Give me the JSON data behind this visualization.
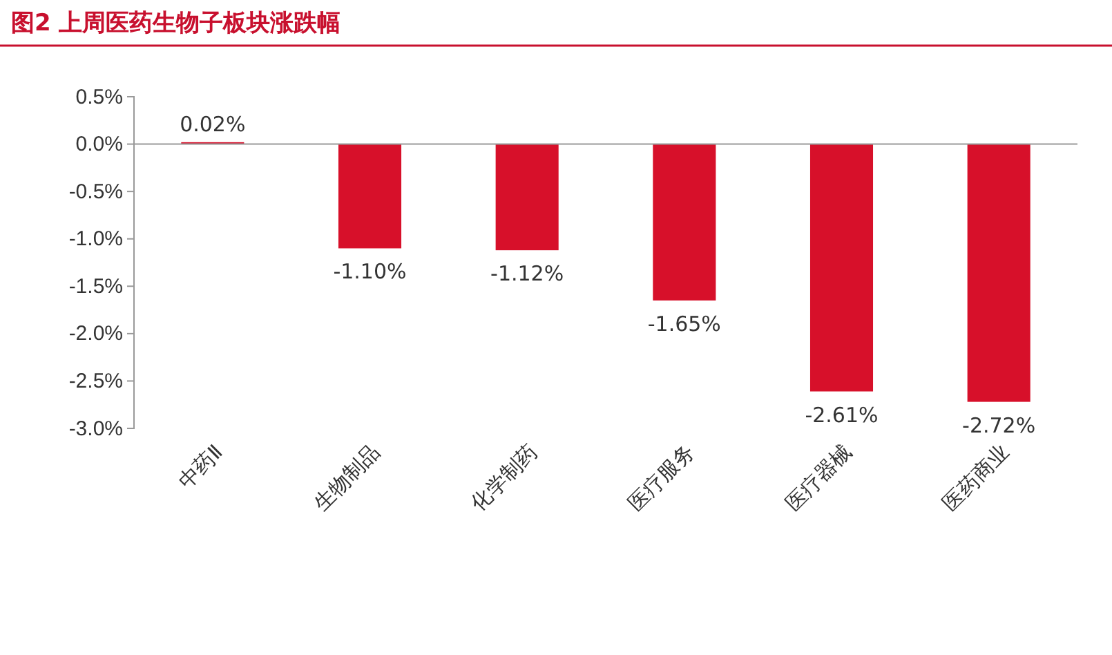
{
  "chart_data": {
    "type": "bar",
    "title": "图2  上周医药生物子板块涨跌幅",
    "categories": [
      "中药Ⅱ",
      "生物制品",
      "化学制药",
      "医疗服务",
      "医疗器械",
      "医药商业"
    ],
    "values": [
      0.02,
      -1.1,
      -1.12,
      -1.65,
      -2.61,
      -2.72
    ],
    "color": "#d7102a",
    "value_labels": [
      "0.02%",
      "-1.10%",
      "-1.12%",
      "-1.65%",
      "-2.61%",
      "-2.72%"
    ],
    "ylim": [
      -3.0,
      0.5
    ],
    "yticks": [
      {
        "value": 0.5,
        "label": "0.5%"
      },
      {
        "value": 0,
        "label": "0.0%"
      },
      {
        "value": -0.5,
        "label": "-0.5%"
      },
      {
        "value": -1.0,
        "label": "-1.0%"
      },
      {
        "value": -1.5,
        "label": "-1.5%"
      },
      {
        "value": -2.0,
        "label": "-2.0%"
      },
      {
        "value": -2.5,
        "label": "-2.5%"
      },
      {
        "value": -3.0,
        "label": "-3.0%"
      }
    ],
    "orientation": "vertical"
  }
}
